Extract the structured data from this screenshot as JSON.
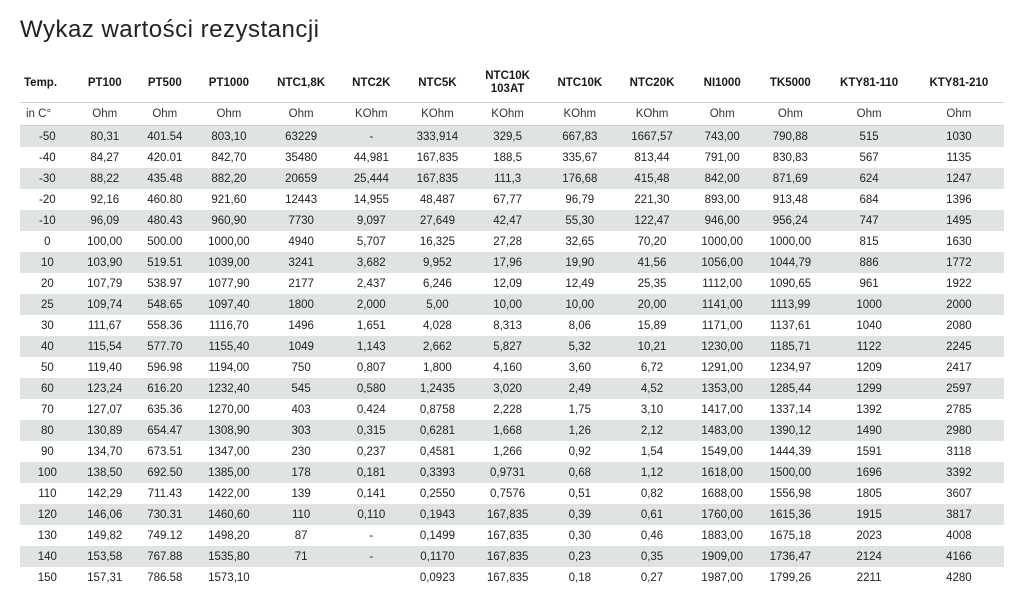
{
  "title": "Wykaz wartości rezystancji",
  "table": {
    "background_color": "#ffffff",
    "stripe_color": "#dfe4e3",
    "border_color": "#cfcfcf",
    "text_color": "#222222",
    "header_fontsize": 11.5,
    "cell_fontsize": 11.5,
    "columns": [
      {
        "label": "Temp.",
        "unit": "in C°"
      },
      {
        "label": "PT100",
        "unit": "Ohm"
      },
      {
        "label": "PT500",
        "unit": "Ohm"
      },
      {
        "label": "PT1000",
        "unit": "Ohm"
      },
      {
        "label": "NTC1,8K",
        "unit": "Ohm"
      },
      {
        "label": "NTC2K",
        "unit": "KOhm"
      },
      {
        "label": "NTC5K",
        "unit": "KOhm"
      },
      {
        "label": "NTC10K\n103AT",
        "unit": "KOhm"
      },
      {
        "label": "NTC10K",
        "unit": "KOhm"
      },
      {
        "label": "NTC20K",
        "unit": "KOhm"
      },
      {
        "label": "NI1000",
        "unit": "Ohm"
      },
      {
        "label": "TK5000",
        "unit": "Ohm"
      },
      {
        "label": "KTY81-110",
        "unit": "Ohm"
      },
      {
        "label": "KTY81-210",
        "unit": "Ohm"
      }
    ],
    "rows": [
      [
        "-50",
        "80,31",
        "401.54",
        "803,10",
        "63229",
        "-",
        "333,914",
        "329,5",
        "667,83",
        "1667,57",
        "743,00",
        "790,88",
        "515",
        "1030"
      ],
      [
        "-40",
        "84,27",
        "420.01",
        "842,70",
        "35480",
        "44,981",
        "167,835",
        "188,5",
        "335,67",
        "813,44",
        "791,00",
        "830,83",
        "567",
        "1135"
      ],
      [
        "-30",
        "88,22",
        "435.48",
        "882,20",
        "20659",
        "25,444",
        "167,835",
        "111,3",
        "176,68",
        "415,48",
        "842,00",
        "871,69",
        "624",
        "1247"
      ],
      [
        "-20",
        "92,16",
        "460.80",
        "921,60",
        "12443",
        "14,955",
        "48,487",
        "67,77",
        "96,79",
        "221,30",
        "893,00",
        "913,48",
        "684",
        "1396"
      ],
      [
        "-10",
        "96,09",
        "480.43",
        "960,90",
        "7730",
        "9,097",
        "27,649",
        "42,47",
        "55,30",
        "122,47",
        "946,00",
        "956,24",
        "747",
        "1495"
      ],
      [
        "0",
        "100,00",
        "500.00",
        "1000,00",
        "4940",
        "5,707",
        "16,325",
        "27,28",
        "32,65",
        "70,20",
        "1000,00",
        "1000,00",
        "815",
        "1630"
      ],
      [
        "10",
        "103,90",
        "519.51",
        "1039,00",
        "3241",
        "3,682",
        "9,952",
        "17,96",
        "19,90",
        "41,56",
        "1056,00",
        "1044,79",
        "886",
        "1772"
      ],
      [
        "20",
        "107,79",
        "538.97",
        "1077,90",
        "2177",
        "2,437",
        "6,246",
        "12,09",
        "12,49",
        "25,35",
        "1112,00",
        "1090,65",
        "961",
        "1922"
      ],
      [
        "25",
        "109,74",
        "548.65",
        "1097,40",
        "1800",
        "2,000",
        "5,00",
        "10,00",
        "10,00",
        "20,00",
        "1141,00",
        "1113,99",
        "1000",
        "2000"
      ],
      [
        "30",
        "111,67",
        "558.36",
        "1116,70",
        "1496",
        "1,651",
        "4,028",
        "8,313",
        "8,06",
        "15,89",
        "1171,00",
        "1137,61",
        "1040",
        "2080"
      ],
      [
        "40",
        "115,54",
        "577.70",
        "1155,40",
        "1049",
        "1,143",
        "2,662",
        "5,827",
        "5,32",
        "10,21",
        "1230,00",
        "1185,71",
        "1122",
        "2245"
      ],
      [
        "50",
        "119,40",
        "596.98",
        "1194,00",
        "750",
        "0,807",
        "1,800",
        "4,160",
        "3,60",
        "6,72",
        "1291,00",
        "1234,97",
        "1209",
        "2417"
      ],
      [
        "60",
        "123,24",
        "616.20",
        "1232,40",
        "545",
        "0,580",
        "1,2435",
        "3,020",
        "2,49",
        "4,52",
        "1353,00",
        "1285,44",
        "1299",
        "2597"
      ],
      [
        "70",
        "127,07",
        "635.36",
        "1270,00",
        "403",
        "0,424",
        "0,8758",
        "2,228",
        "1,75",
        "3,10",
        "1417,00",
        "1337,14",
        "1392",
        "2785"
      ],
      [
        "80",
        "130,89",
        "654.47",
        "1308,90",
        "303",
        "0,315",
        "0,6281",
        "1,668",
        "1,26",
        "2,12",
        "1483,00",
        "1390,12",
        "1490",
        "2980"
      ],
      [
        "90",
        "134,70",
        "673.51",
        "1347,00",
        "230",
        "0,237",
        "0,4581",
        "1,266",
        "0,92",
        "1,54",
        "1549,00",
        "1444,39",
        "1591",
        "3118"
      ],
      [
        "100",
        "138,50",
        "692.50",
        "1385,00",
        "178",
        "0,181",
        "0,3393",
        "0,9731",
        "0,68",
        "1,12",
        "1618,00",
        "1500,00",
        "1696",
        "3392"
      ],
      [
        "110",
        "142,29",
        "711.43",
        "1422,00",
        "139",
        "0,141",
        "0,2550",
        "0,7576",
        "0,51",
        "0,82",
        "1688,00",
        "1556,98",
        "1805",
        "3607"
      ],
      [
        "120",
        "146,06",
        "730.31",
        "1460,60",
        "110",
        "0,110",
        "0,1943",
        "167,835",
        "0,39",
        "0,61",
        "1760,00",
        "1615,36",
        "1915",
        "3817"
      ],
      [
        "130",
        "149,82",
        "749.12",
        "1498,20",
        "87",
        "-",
        "0,1499",
        "167,835",
        "0,30",
        "0,46",
        "1883,00",
        "1675,18",
        "2023",
        "4008"
      ],
      [
        "140",
        "153,58",
        "767.88",
        "1535,80",
        "71",
        "-",
        "0,1170",
        "167,835",
        "0,23",
        "0,35",
        "1909,00",
        "1736,47",
        "2124",
        "4166"
      ],
      [
        "150",
        "157,31",
        "786.58",
        "1573,10",
        "",
        "",
        "0,0923",
        "167,835",
        "0,18",
        "0,27",
        "1987,00",
        "1799,26",
        "2211",
        "4280"
      ]
    ]
  }
}
